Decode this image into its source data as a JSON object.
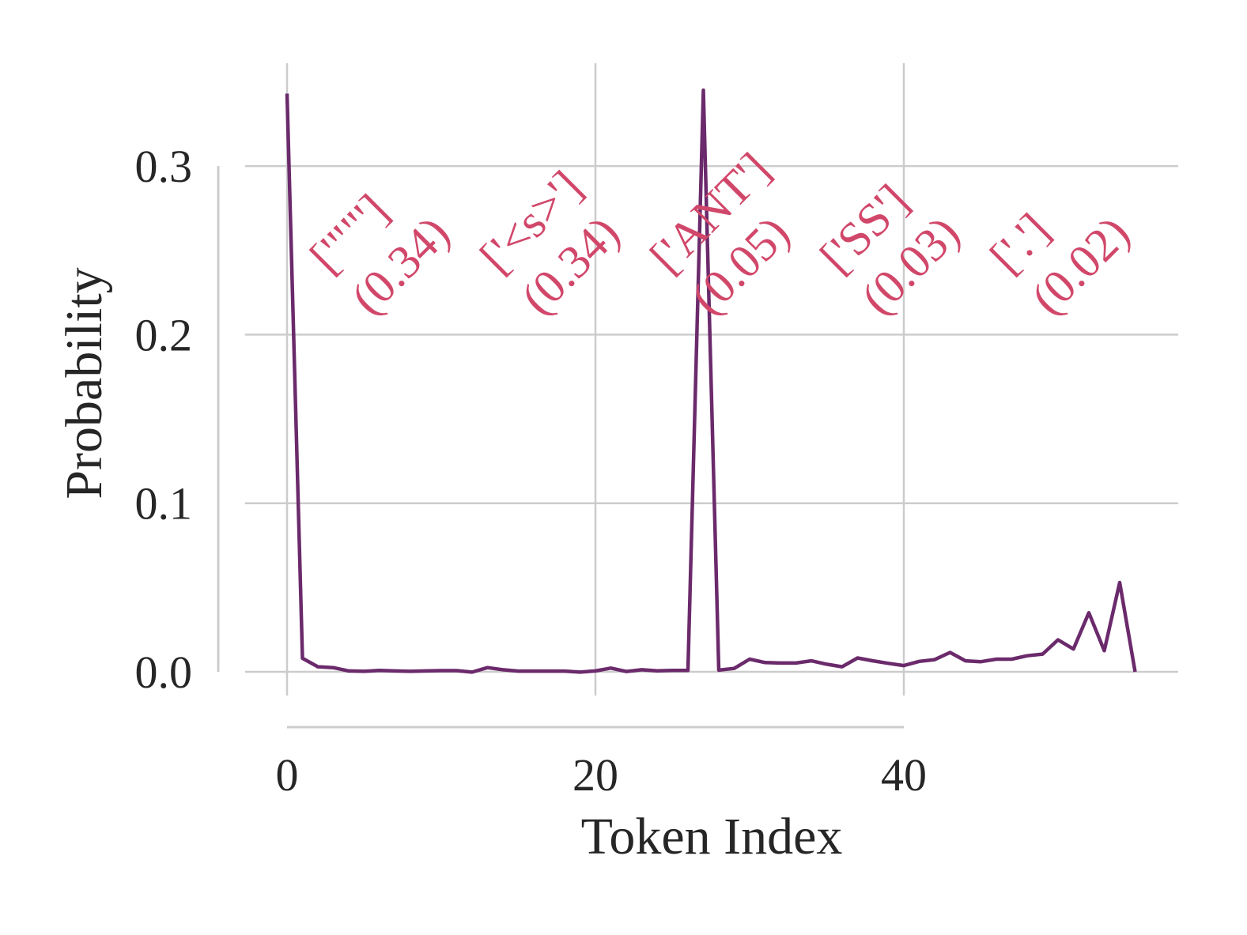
{
  "chart_data": {
    "type": "line",
    "xlabel": "Token Index",
    "ylabel": "Probability",
    "xlim": [
      -2.7,
      57.0
    ],
    "ylim": [
      -0.018,
      0.36
    ],
    "xticks": [
      0,
      20,
      40
    ],
    "yticks": [
      0.0,
      0.1,
      0.2,
      0.3
    ],
    "ytick_labels": [
      "0.0",
      "0.1",
      "0.2",
      "0.3"
    ],
    "xtick_labels": [
      "0",
      "20",
      "40"
    ],
    "grid": true,
    "line_color": "#6b2a6b",
    "annotation_color": "#d1476a",
    "series": [
      {
        "x": [
          0,
          1,
          2,
          3,
          4,
          5,
          6,
          7,
          8,
          9,
          10,
          11,
          12,
          13,
          14,
          15,
          16,
          17,
          18,
          19,
          20,
          21,
          22,
          23,
          24,
          25,
          26,
          27,
          28,
          29,
          30,
          31,
          32,
          33,
          34,
          35,
          36,
          37,
          38,
          39,
          40,
          41,
          42,
          43,
          44,
          45,
          46,
          47,
          48,
          49,
          50,
          51,
          52,
          53,
          54,
          55
        ],
        "values": [
          0.343,
          0.008,
          0.003,
          0.0025,
          0.0005,
          0.0003,
          0.0008,
          0.0005,
          0.0003,
          0.0005,
          0.0007,
          0.0007,
          -0.0002,
          0.0025,
          0.0012,
          0.0004,
          0.0004,
          0.0004,
          0.0004,
          -0.0002,
          0.0005,
          0.0022,
          0.0002,
          0.0012,
          0.0006,
          0.0008,
          0.0008,
          0.345,
          0.001,
          0.002,
          0.0075,
          0.0055,
          0.0052,
          0.0052,
          0.0065,
          0.0045,
          0.003,
          0.0082,
          0.0065,
          0.005,
          0.0037,
          0.0062,
          0.0072,
          0.0115,
          0.0065,
          0.006,
          0.0075,
          0.0075,
          0.0095,
          0.0105,
          0.019,
          0.0135,
          0.035,
          0.0125,
          0.053,
          0.0
        ]
      }
    ],
    "annotations": [
      {
        "line1": "['\"\"']",
        "line2": "(0.34)"
      },
      {
        "line1": "['<s>']",
        "line2": "(0.34)"
      },
      {
        "line1": "['ANT']",
        "line2": "(0.05)"
      },
      {
        "line1": "['SS']",
        "line2": "(0.03)"
      },
      {
        "line1": "['.']",
        "line2": "(0.02)"
      }
    ]
  }
}
